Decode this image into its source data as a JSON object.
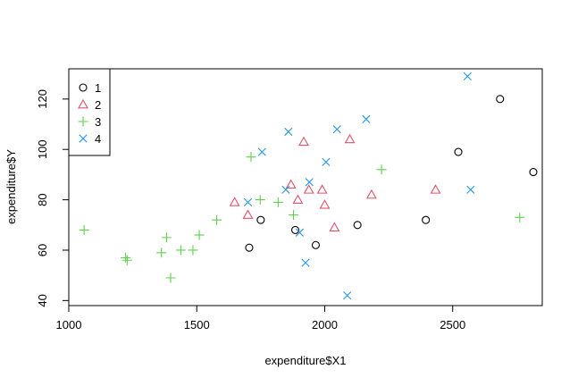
{
  "chart_data": {
    "type": "scatter",
    "title": "",
    "xlabel": "expenditure$X1",
    "ylabel": "expenditure$Y",
    "xlim": [
      1000,
      2850
    ],
    "ylim": [
      38,
      132
    ],
    "xticks": [
      1000,
      1500,
      2000,
      2500
    ],
    "yticks": [
      40,
      60,
      80,
      100,
      120
    ],
    "grid": false,
    "legend_position": "top-left",
    "series": [
      {
        "name": "1",
        "marker": "circle",
        "color": "#000000",
        "points": [
          [
            1705,
            61
          ],
          [
            1750,
            72
          ],
          [
            1885,
            68
          ],
          [
            1965,
            62
          ],
          [
            2128,
            70
          ],
          [
            2395,
            72
          ],
          [
            2522,
            99
          ],
          [
            2685,
            120
          ],
          [
            2815,
            91
          ]
        ]
      },
      {
        "name": "2",
        "marker": "triangle",
        "color": "#DF536B",
        "points": [
          [
            1648,
            79
          ],
          [
            1700,
            74
          ],
          [
            1868,
            86
          ],
          [
            1895,
            80
          ],
          [
            1918,
            103
          ],
          [
            1938,
            84
          ],
          [
            1990,
            84
          ],
          [
            2000,
            78
          ],
          [
            2038,
            69
          ],
          [
            2098,
            104
          ],
          [
            2183,
            82
          ],
          [
            2433,
            84
          ]
        ]
      },
      {
        "name": "3",
        "marker": "plus",
        "color": "#61D04F",
        "points": [
          [
            1060,
            68
          ],
          [
            1222,
            57
          ],
          [
            1228,
            56
          ],
          [
            1362,
            59
          ],
          [
            1382,
            65
          ],
          [
            1398,
            49
          ],
          [
            1438,
            60
          ],
          [
            1485,
            60
          ],
          [
            1510,
            66
          ],
          [
            1578,
            72
          ],
          [
            1712,
            97
          ],
          [
            1748,
            80
          ],
          [
            1818,
            79
          ],
          [
            1878,
            74
          ],
          [
            2222,
            92
          ],
          [
            2762,
            73
          ]
        ]
      },
      {
        "name": "4",
        "marker": "x",
        "color": "#2297E6",
        "points": [
          [
            1700,
            79
          ],
          [
            1755,
            99
          ],
          [
            1848,
            84
          ],
          [
            1858,
            107
          ],
          [
            1902,
            67
          ],
          [
            1925,
            55
          ],
          [
            1940,
            87
          ],
          [
            2005,
            95
          ],
          [
            2048,
            108
          ],
          [
            2088,
            42
          ],
          [
            2162,
            112
          ],
          [
            2558,
            129
          ],
          [
            2570,
            84
          ]
        ]
      }
    ]
  }
}
